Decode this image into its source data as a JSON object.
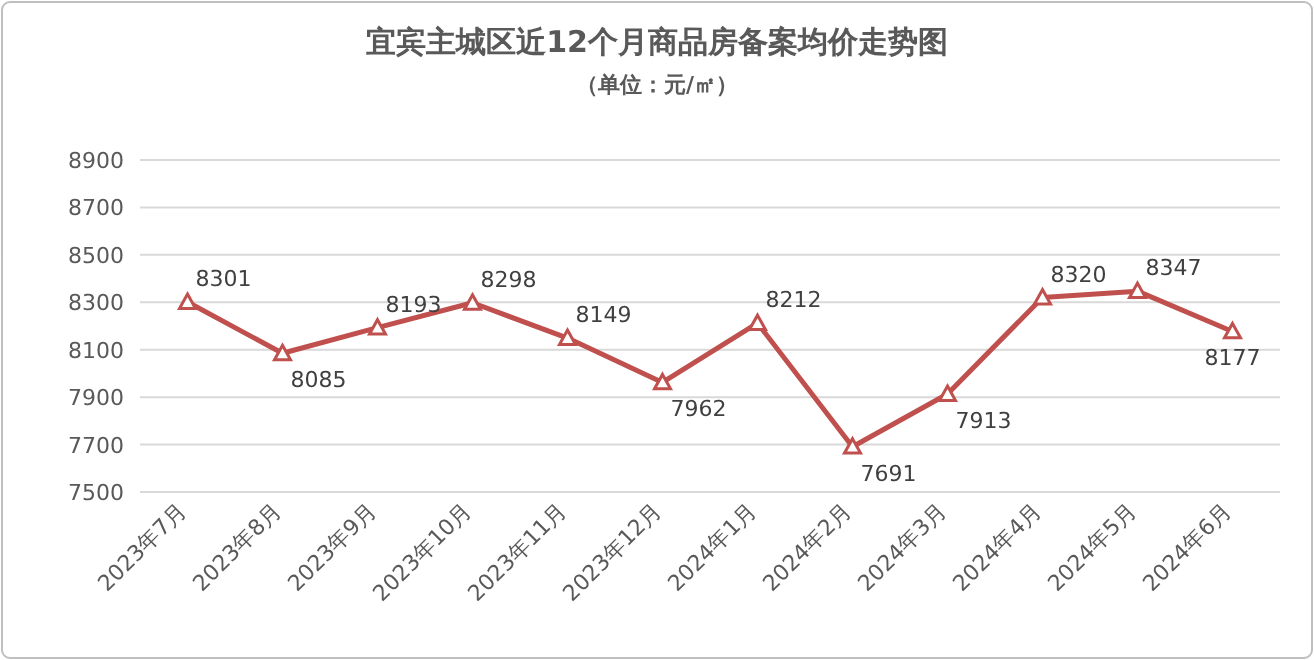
{
  "chart_data": {
    "type": "line",
    "title": "宜宾主城区近12个月商品房备案均价走势图",
    "subtitle": "（单位：元/㎡）",
    "categories": [
      "2023年7月",
      "2023年8月",
      "2023年9月",
      "2023年10月",
      "2023年11月",
      "2023年12月",
      "2024年1月",
      "2024年2月",
      "2024年3月",
      "2024年4月",
      "2024年5月",
      "2024年6月"
    ],
    "series": [
      {
        "color": "#c0504d",
        "values": [
          8301,
          8085,
          8193,
          8298,
          8149,
          7962,
          8212,
          7691,
          7913,
          8320,
          8347,
          8177
        ]
      }
    ],
    "ylim": [
      7500,
      8900
    ],
    "yticks": [
      7500,
      7700,
      7900,
      8100,
      8300,
      8500,
      8700,
      8900
    ],
    "grid": "y",
    "marker": "triangle",
    "line_style": "solid",
    "data_labels": true
  }
}
